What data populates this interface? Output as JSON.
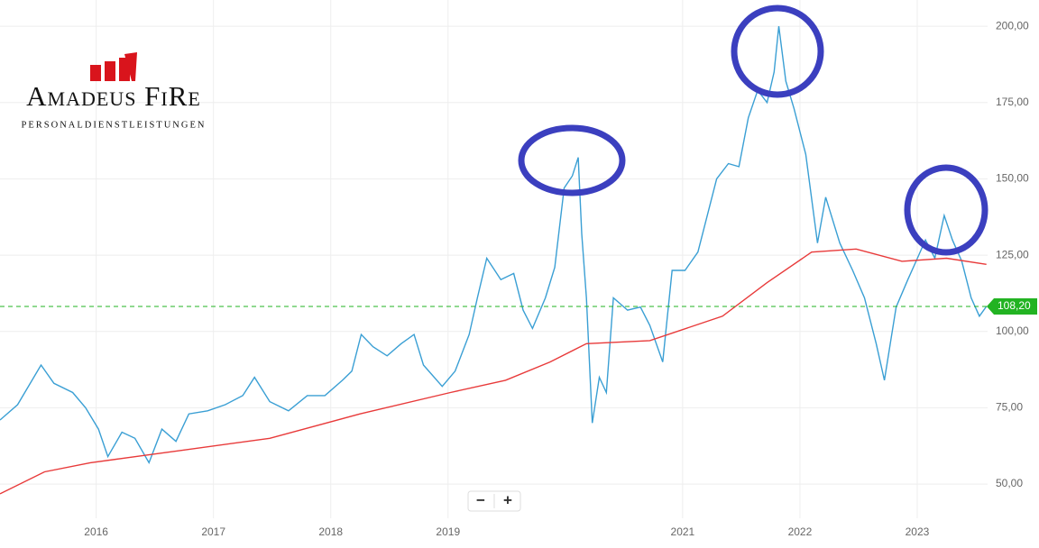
{
  "chart_data": {
    "type": "line",
    "logo": {
      "name": "Amadeus FiRe",
      "tagline": "PERSONALDIENSTLEISTUNGEN"
    },
    "zoom_controls": [
      "−",
      "+"
    ],
    "xlim": [
      2015.18,
      2023.6
    ],
    "xticks": [
      2016,
      2017,
      2018,
      2019,
      2021,
      2022,
      2023
    ],
    "ylim": [
      38.8,
      208.6
    ],
    "yticks": [
      {
        "value": 50,
        "label": "50,00"
      },
      {
        "value": 75,
        "label": "75,00"
      },
      {
        "value": 100,
        "label": "100,00"
      },
      {
        "value": 125,
        "label": "125,00"
      },
      {
        "value": 150,
        "label": "150,00"
      },
      {
        "value": 175,
        "label": "175,00"
      },
      {
        "value": 200,
        "label": "200,00"
      }
    ],
    "grid": true,
    "last_price": {
      "value": 108.2,
      "label": "108,20",
      "color": "#22b322"
    },
    "series": [
      {
        "color": "#3a9fd4",
        "x": [
          2015.18,
          2015.33,
          2015.53,
          2015.64,
          2015.8,
          2015.91,
          2016.02,
          2016.1,
          2016.22,
          2016.33,
          2016.45,
          2016.56,
          2016.68,
          2016.79,
          2016.95,
          2017.1,
          2017.25,
          2017.35,
          2017.48,
          2017.64,
          2017.8,
          2017.95,
          2018.1,
          2018.18,
          2018.26,
          2018.36,
          2018.48,
          2018.6,
          2018.71,
          2018.79,
          2018.95,
          2019.06,
          2019.18,
          2019.25,
          2019.33,
          2019.45,
          2019.56,
          2019.64,
          2019.72,
          2019.83,
          2019.91,
          2019.99,
          2020.06,
          2020.11,
          2020.14,
          2020.18,
          2020.23,
          2020.29,
          2020.35,
          2020.41,
          2020.53,
          2020.64,
          2020.72,
          2020.83,
          2020.91,
          2021.02,
          2021.13,
          2021.21,
          2021.29,
          2021.39,
          2021.48,
          2021.56,
          2021.64,
          2021.72,
          2021.78,
          2021.82,
          2021.88,
          2021.95,
          2022.05,
          2022.15,
          2022.22,
          2022.34,
          2022.45,
          2022.55,
          2022.65,
          2022.72,
          2022.82,
          2022.92,
          2022.99,
          2023.07,
          2023.15,
          2023.23,
          2023.3,
          2023.38,
          2023.46,
          2023.53,
          2023.59
        ],
        "values": [
          71,
          76,
          89,
          83,
          80,
          75,
          68,
          59,
          67,
          65,
          57,
          68,
          64,
          73,
          74,
          76,
          79,
          85,
          77,
          74,
          79,
          79,
          84,
          87,
          99,
          95,
          92,
          96,
          99,
          89,
          82,
          87,
          99,
          111,
          124,
          117,
          119,
          107,
          101,
          111,
          121,
          147,
          151,
          157,
          132,
          111,
          70,
          85,
          80,
          111,
          107,
          108,
          102,
          90,
          120,
          120,
          126,
          138,
          150,
          155,
          154,
          170,
          179,
          175,
          185,
          200,
          182,
          173,
          158,
          129,
          144,
          129,
          120,
          111,
          96,
          84,
          108,
          117,
          123,
          130,
          124,
          138,
          130,
          123,
          111,
          105,
          108.2
        ]
      },
      {
        "color": "#e83a3a",
        "x": [
          2015.18,
          2015.56,
          2015.95,
          2016.72,
          2017.48,
          2018.25,
          2019.02,
          2019.49,
          2019.87,
          2020.18,
          2020.72,
          2021.34,
          2021.72,
          2022.1,
          2022.48,
          2022.87,
          2023.25,
          2023.59
        ],
        "values": [
          46.8,
          54,
          57,
          61,
          65,
          73,
          80,
          84,
          90,
          96,
          97,
          105,
          116,
          126,
          127,
          123,
          124,
          122
        ]
      }
    ]
  }
}
